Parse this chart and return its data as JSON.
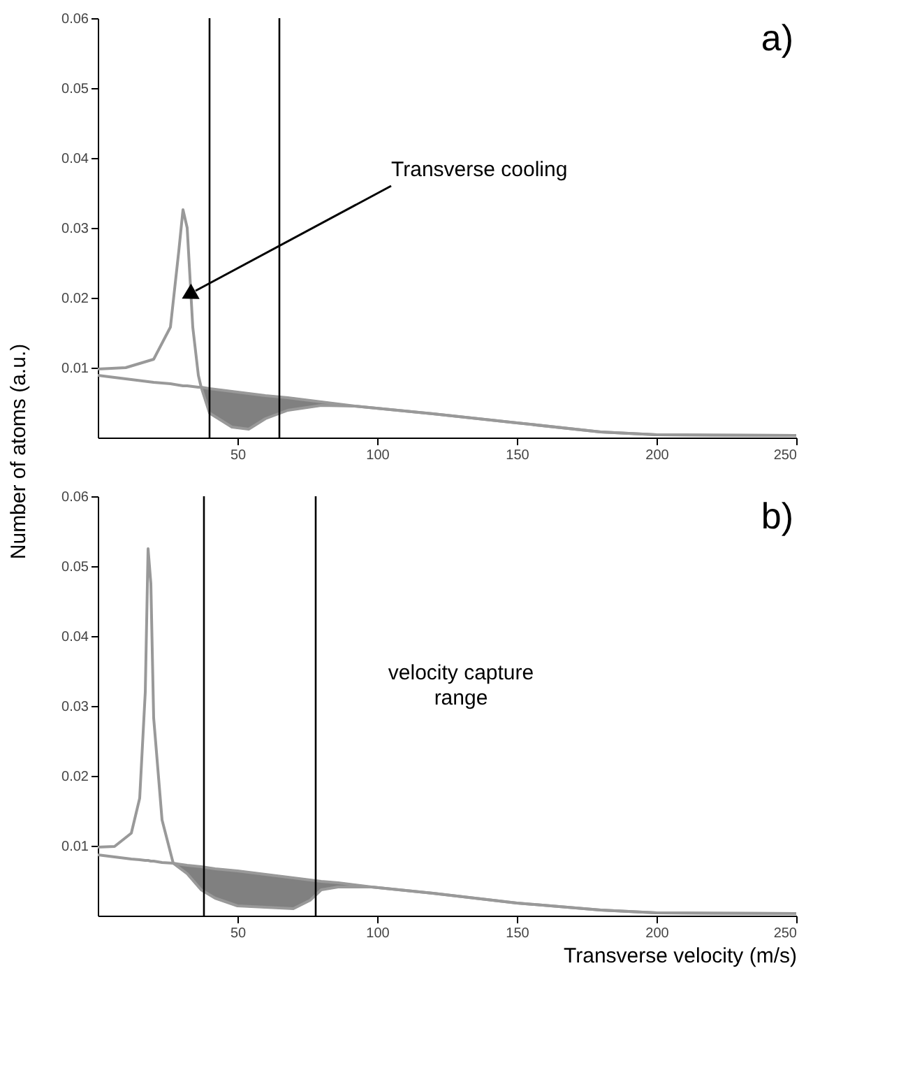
{
  "chart_data": [
    {
      "type": "line",
      "ylabel": "Number of atoms (a.u.)",
      "xlim": [
        0,
        250
      ],
      "xticks": [
        50,
        100,
        150,
        200,
        250
      ],
      "ylim": [
        0,
        0.06
      ],
      "yticks": [
        0.01,
        0.02,
        0.03,
        0.04,
        0.05,
        0.06
      ],
      "grid": false,
      "marker": "none",
      "series": [
        {
          "color": "#999999",
          "x": [
            0,
            10,
            20,
            26,
            29,
            30.5,
            32,
            34,
            36,
            37,
            40,
            48,
            54,
            60,
            68,
            80,
            92,
            120,
            150,
            180,
            200,
            250
          ],
          "values": [
            0.0098,
            0.01,
            0.0112,
            0.0158,
            0.0267,
            0.0326,
            0.03,
            0.0158,
            0.0089,
            0.0072,
            0.0035,
            0.0015,
            0.0012,
            0.0027,
            0.0039,
            0.0046,
            0.0045,
            0.0034,
            0.0021,
            0.0008,
            0.0004,
            0.0003
          ]
        },
        {
          "color": "#999999",
          "x": [
            0,
            10,
            20,
            26,
            29,
            30.5,
            32,
            34,
            36,
            37,
            40,
            48,
            54,
            60,
            68,
            80,
            92,
            120,
            150,
            180,
            200,
            250
          ],
          "values": [
            0.0089,
            0.0084,
            0.0079,
            0.0077,
            0.0075,
            0.0074,
            0.0074,
            0.0073,
            0.0072,
            0.0072,
            0.007,
            0.0066,
            0.0063,
            0.006,
            0.0057,
            0.0051,
            0.0045,
            0.0034,
            0.0021,
            0.0008,
            0.0004,
            0.0003
          ],
          "lower": [
            null,
            null,
            null,
            null,
            null,
            null,
            null,
            null,
            null,
            0.0072,
            0.0035,
            0.0015,
            0.0012,
            0.0027,
            0.0039,
            0.0046,
            0.0045,
            null,
            null,
            null,
            null,
            null
          ],
          "upper": [
            null,
            null,
            null,
            null,
            null,
            null,
            null,
            null,
            null,
            0.0072,
            0.007,
            0.0066,
            0.0063,
            0.006,
            0.0057,
            0.0051,
            0.0045,
            null,
            null,
            null,
            null,
            null
          ]
        }
      ],
      "ref_lines": [
        {
          "axis": "x",
          "value": 40,
          "color": "#000000"
        },
        {
          "axis": "x",
          "value": 65,
          "color": "#000000"
        }
      ],
      "annotations": [
        "a)",
        {
          "text": "Transverse cooling",
          "x": 35,
          "y": 0.021
        }
      ]
    },
    {
      "type": "line",
      "xlabel": "Transverse velocity (m/s)",
      "xlim": [
        0,
        250
      ],
      "xticks": [
        50,
        100,
        150,
        200,
        250
      ],
      "ylim": [
        0,
        0.06
      ],
      "yticks": [
        0.01,
        0.02,
        0.03,
        0.04,
        0.05,
        0.06
      ],
      "grid": false,
      "marker": "none",
      "series": [
        {
          "color": "#999999",
          "x": [
            0,
            6,
            12,
            15,
            17,
            18,
            19,
            20,
            23,
            27,
            32,
            37,
            42,
            50,
            60,
            70,
            76,
            80,
            86,
            98,
            120,
            150,
            180,
            200,
            250
          ],
          "values": [
            0.0098,
            0.0099,
            0.0118,
            0.0168,
            0.032,
            0.0525,
            0.0475,
            0.0283,
            0.0137,
            0.0075,
            0.006,
            0.0037,
            0.0025,
            0.0014,
            0.0012,
            0.001,
            0.0022,
            0.0037,
            0.0041,
            0.0041,
            0.0032,
            0.0018,
            0.0008,
            0.0004,
            0.0003
          ]
        },
        {
          "color": "#999999",
          "x": [
            0,
            6,
            12,
            15,
            17,
            18,
            19,
            20,
            23,
            27,
            32,
            37,
            42,
            50,
            60,
            70,
            76,
            80,
            86,
            98,
            120,
            150,
            180,
            200,
            250
          ],
          "values": [
            0.0087,
            0.0084,
            0.0081,
            0.008,
            0.0079,
            0.0079,
            0.0078,
            0.0078,
            0.0076,
            0.0075,
            0.0072,
            0.007,
            0.0067,
            0.0064,
            0.0059,
            0.0054,
            0.0051,
            0.0049,
            0.0047,
            0.0041,
            0.0032,
            0.0018,
            0.0008,
            0.0004,
            0.0003
          ],
          "lower": [
            null,
            null,
            null,
            null,
            null,
            null,
            null,
            null,
            null,
            0.0075,
            0.006,
            0.0037,
            0.0025,
            0.0014,
            0.0012,
            0.001,
            0.0022,
            0.0037,
            0.0041,
            0.0041,
            null,
            null,
            null,
            null,
            null
          ],
          "upper": [
            null,
            null,
            null,
            null,
            null,
            null,
            null,
            null,
            null,
            0.0075,
            0.0072,
            0.007,
            0.0067,
            0.0064,
            0.0059,
            0.0054,
            0.0051,
            0.0049,
            0.0047,
            0.0041,
            null,
            null,
            null,
            null,
            null
          ]
        }
      ],
      "ref_lines": [
        {
          "axis": "x",
          "value": 38,
          "color": "#000000"
        },
        {
          "axis": "x",
          "value": 78,
          "color": "#000000"
        }
      ],
      "annotations": [
        "b)",
        "velocity capture range"
      ]
    }
  ]
}
